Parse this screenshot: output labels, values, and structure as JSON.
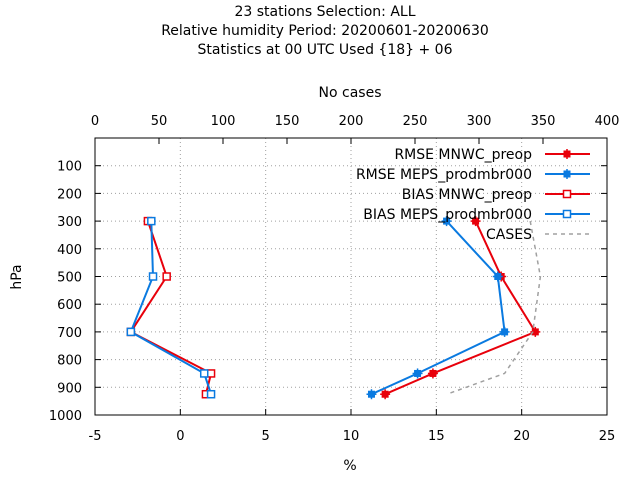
{
  "chart_data": {
    "type": "line",
    "title_lines": [
      "23 stations Selection: ALL",
      "Relative humidity  Period: 20200601-20200630",
      "Statistics at 00 UTC  Used {18} + 06"
    ],
    "xlabel": "%",
    "ylabel": "hPa",
    "x2label": "No cases",
    "xlim": [
      -5,
      25
    ],
    "x2lim": [
      0,
      400
    ],
    "ylim": [
      1000,
      0
    ],
    "xticks": [
      "-5",
      "0",
      "5",
      "10",
      "15",
      "20",
      "25"
    ],
    "x2ticks": [
      "0",
      "50",
      "100",
      "150",
      "200",
      "250",
      "300",
      "350",
      "400"
    ],
    "yticks": [
      "100",
      "200",
      "300",
      "400",
      "500",
      "600",
      "700",
      "800",
      "900",
      "1000"
    ],
    "grid": true,
    "legend_position": "top-right",
    "series": [
      {
        "name": "RMSE MNWC_preop",
        "color": "#e8000b",
        "marker": "filled-square",
        "points": [
          [
            17.3,
            300
          ],
          [
            18.8,
            500
          ],
          [
            20.8,
            700
          ],
          [
            14.8,
            850
          ],
          [
            12.0,
            925
          ]
        ]
      },
      {
        "name": "RMSE MEPS_prodmbr000",
        "color": "#0a7ae0",
        "marker": "filled-square",
        "points": [
          [
            15.6,
            300
          ],
          [
            18.6,
            500
          ],
          [
            19.0,
            700
          ],
          [
            13.9,
            850
          ],
          [
            11.2,
            925
          ]
        ]
      },
      {
        "name": "BIAS MNWC_preop",
        "color": "#e8000b",
        "marker": "open-square",
        "points": [
          [
            -1.9,
            300
          ],
          [
            -0.8,
            500
          ],
          [
            -2.9,
            700
          ],
          [
            1.8,
            850
          ],
          [
            1.5,
            925
          ]
        ]
      },
      {
        "name": "BIAS MEPS_prodmbr000",
        "color": "#0a7ae0",
        "marker": "open-square",
        "points": [
          [
            -1.7,
            300
          ],
          [
            -1.6,
            500
          ],
          [
            -2.9,
            700
          ],
          [
            1.4,
            850
          ],
          [
            1.8,
            925
          ]
        ]
      },
      {
        "name": "CASES",
        "color": "#a0a0a0",
        "marker": "none",
        "dashed": true,
        "axis": "x2",
        "points": [
          [
            340,
            300
          ],
          [
            348,
            500
          ],
          [
            342,
            700
          ],
          [
            320,
            850
          ],
          [
            275,
            925
          ]
        ]
      }
    ]
  }
}
